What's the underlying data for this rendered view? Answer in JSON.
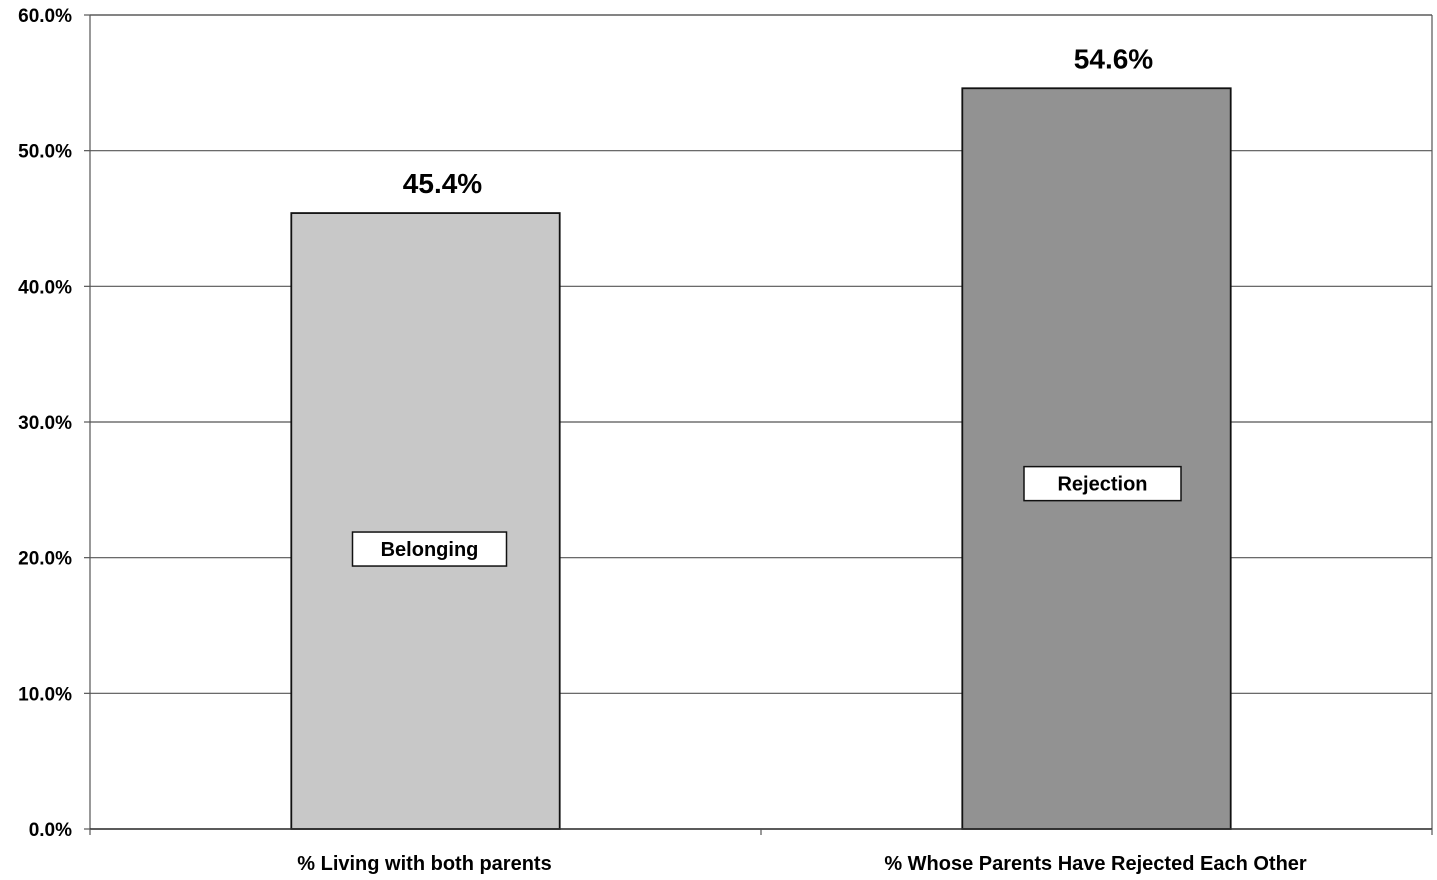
{
  "chart_data": {
    "type": "bar",
    "categories": [
      "% Living with both parents",
      "% Whose Parents Have Rejected Each Other"
    ],
    "values": [
      45.4,
      54.6
    ],
    "data_labels": [
      "45.4%",
      "54.6%"
    ],
    "bar_annotations": [
      "Belonging",
      "Rejection"
    ],
    "bar_colors": [
      "#c8c8c8",
      "#929292"
    ],
    "ylim": [
      0,
      60
    ],
    "yticks": [
      0,
      10,
      20,
      30,
      40,
      50,
      60
    ],
    "ytick_labels": [
      "0.0%",
      "10.0%",
      "20.0%",
      "30.0%",
      "40.0%",
      "50.0%",
      "60.0%"
    ],
    "grid": true,
    "legend": "none",
    "title": "",
    "xlabel": "",
    "ylabel": ""
  }
}
